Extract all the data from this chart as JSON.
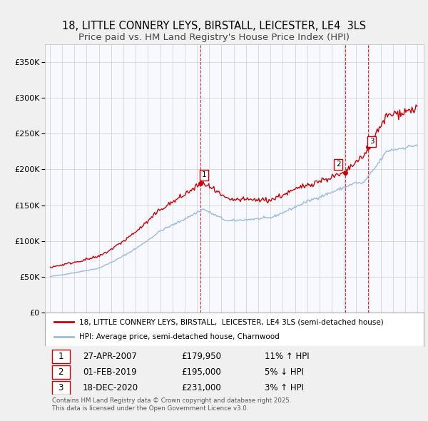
{
  "title": "18, LITTLE CONNERY LEYS, BIRSTALL, LEICESTER, LE4  3LS",
  "subtitle": "Price paid vs. HM Land Registry's House Price Index (HPI)",
  "title_fontsize": 10.5,
  "subtitle_fontsize": 9.5,
  "ylim": [
    0,
    375000
  ],
  "yticks": [
    0,
    50000,
    100000,
    150000,
    200000,
    250000,
    300000,
    350000
  ],
  "background_color": "#f0f0f0",
  "plot_bg_color": "#f8f8ff",
  "grid_color": "#cccccc",
  "line1_color": "#cc0000",
  "line2_color": "#99bbdd",
  "marker_color": "#cc0000",
  "vline_color": "#cc0000",
  "legend_line1": "18, LITTLE CONNERY LEYS, BIRSTALL,  LEICESTER, LE4 3LS (semi-detached house)",
  "legend_line2": "HPI: Average price, semi-detached house, Charnwood",
  "sale1_date": "27-APR-2007",
  "sale1_price": 179950,
  "sale1_pct": "11% ↑ HPI",
  "sale2_date": "01-FEB-2019",
  "sale2_price": 195000,
  "sale2_pct": "5% ↓ HPI",
  "sale3_date": "18-DEC-2020",
  "sale3_price": 231000,
  "sale3_pct": "3% ↑ HPI",
  "footnote": "Contains HM Land Registry data © Crown copyright and database right 2025.\nThis data is licensed under the Open Government Licence v3.0."
}
